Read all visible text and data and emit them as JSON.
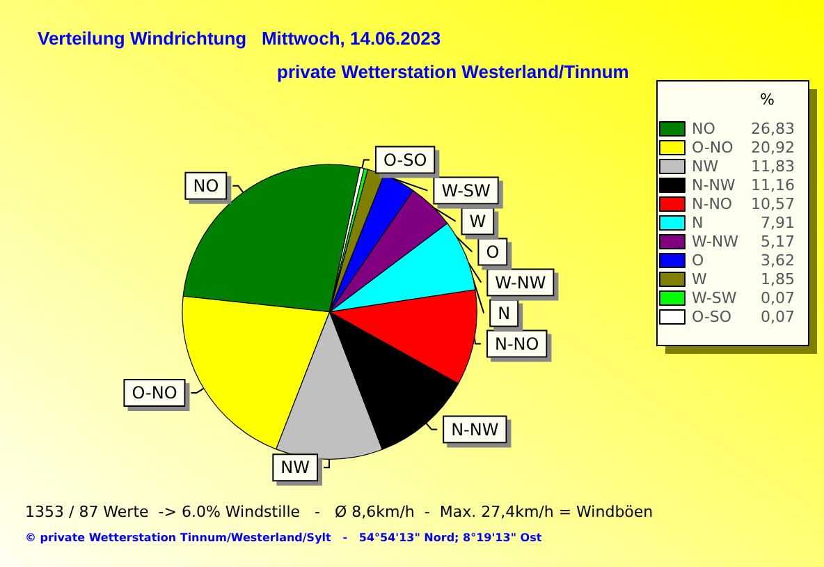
{
  "chart_data": {
    "type": "pie",
    "title": "Verteilung Windrichtung   Mittwoch, 14.06.2023",
    "subtitle": "private Wetterstation Westerland/Tinnum",
    "categories": [
      "NO",
      "O-NO",
      "NW",
      "N-NW",
      "N-NO",
      "N",
      "W-NW",
      "O",
      "W",
      "W-SW",
      "O-SO"
    ],
    "values": [
      26.83,
      20.92,
      11.83,
      11.16,
      10.57,
      7.91,
      5.17,
      3.62,
      1.85,
      0.07,
      0.07
    ],
    "value_labels": [
      "26,83",
      "20,92",
      "11,83",
      "11,16",
      "10,57",
      "7,91",
      "5,17",
      "3,62",
      "1,85",
      "0,07",
      "0,07"
    ],
    "colors": [
      "#008000",
      "#ffff00",
      "#c0c0c0",
      "#000000",
      "#ff0000",
      "#00ffff",
      "#800080",
      "#0000ff",
      "#808000",
      "#00ff00",
      "#ffffff"
    ],
    "legend": "right",
    "legend_title": "%",
    "annotations": [
      "1353 / 87 Werte  -> 6.0% Windstille   -   Ø 8,6km/h  -  Max. 27,4km/h = Windböen",
      "© private Wetterstation Tinnum/Westerland/Sylt   -   54°54'13\" Nord; 8°19'13\" Ost"
    ]
  }
}
